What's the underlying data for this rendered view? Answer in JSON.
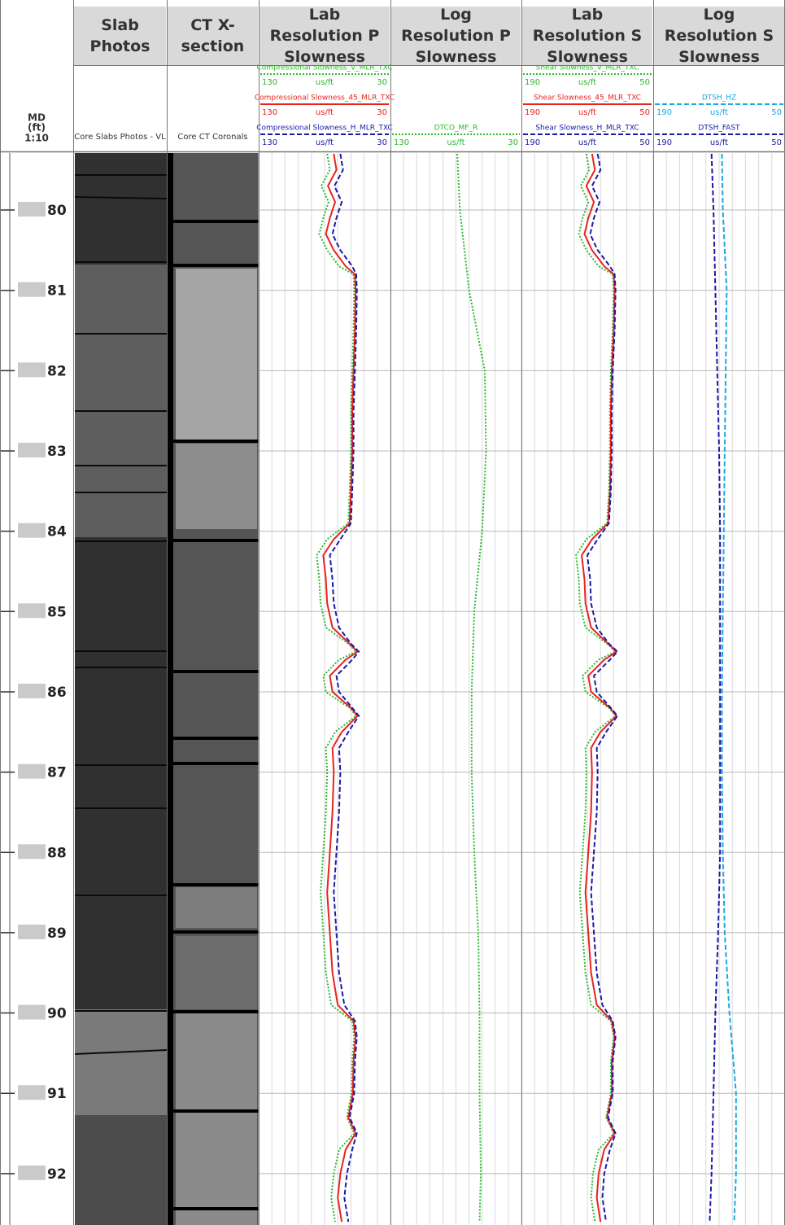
{
  "header": {
    "md": [
      "MD",
      "(ft)",
      "1:10"
    ]
  },
  "chart_data": {
    "type": "well-log",
    "ylim": [
      79.29,
      92.64
    ],
    "yticks": [
      80,
      81,
      82,
      83,
      84,
      85,
      86,
      87,
      88,
      89,
      90,
      91,
      92
    ],
    "tracks": [
      {
        "title": "Slab Photos",
        "subtitle": "Core Slabs Photos - VL"
      },
      {
        "title": "CT X-section",
        "subtitle": "Core CT Coronals"
      },
      {
        "title": "Lab Resolution P Slowness",
        "xlim": [
          130,
          30
        ],
        "xticks": [
          130,
          120,
          110,
          100,
          90,
          80,
          70,
          60,
          50,
          40,
          30
        ],
        "depth": [
          79.3,
          79.5,
          79.7,
          79.9,
          80.1,
          80.3,
          80.5,
          80.7,
          80.8,
          81.0,
          81.5,
          82,
          82.5,
          83,
          83.5,
          83.9,
          84.1,
          84.3,
          84.6,
          84.9,
          85.2,
          85.4,
          85.5,
          85.6,
          85.8,
          86.0,
          86.2,
          86.3,
          86.5,
          86.7,
          87.0,
          87.5,
          88.0,
          88.5,
          89.0,
          89.5,
          89.9,
          90.1,
          90.3,
          90.6,
          91.0,
          91.3,
          91.5,
          91.7,
          92.0,
          92.3,
          92.6
        ],
        "series": [
          {
            "name": "Compressional Slowness_V_MLR_TXC",
            "unit": "us/ft",
            "color": "#2db82d",
            "dash": "2,2",
            "values": [
              78,
              76,
              82.5,
              77,
              81,
              84,
              78,
              69,
              58,
              57.5,
              58,
              59,
              60,
              60,
              61,
              62,
              78,
              86,
              84,
              83,
              79,
              62,
              56,
              69,
              81,
              79,
              61,
              56,
              72,
              79,
              78,
              79,
              81,
              83,
              81,
              79,
              75,
              59,
              57.5,
              59,
              59.5,
              63,
              57.5,
              69,
              73,
              75,
              72
            ]
          },
          {
            "name": "Compressional Slowness_45_MLR_TXC",
            "unit": "us/ft",
            "color": "#e8231e",
            "dash": "none",
            "values": [
              73,
              71,
              77.5,
              72,
              76,
              79,
              73,
              64,
              57,
              56.5,
              57,
              58,
              59,
              59,
              60,
              61,
              73,
              81,
              79,
              78,
              74,
              61,
              55,
              64,
              76,
              74,
              60,
              55,
              67,
              74,
              73,
              74,
              76,
              78,
              76,
              74,
              70,
              58,
              56.5,
              58,
              58.5,
              62,
              56.5,
              64,
              68,
              70,
              67
            ]
          },
          {
            "name": "Compressional Slowness_H_MLR_TXC",
            "unit": "us/ft",
            "color": "#1a1aa8",
            "dash": "6,3",
            "values": [
              68,
              66,
              72.5,
              67,
              71,
              74,
              68,
              59,
              56,
              55.5,
              56,
              57,
              58,
              58,
              59,
              60,
              68,
              76,
              74,
              73,
              69,
              60,
              54,
              59,
              71,
              69,
              59,
              54,
              62,
              69,
              68,
              69,
              71,
              73,
              71,
              69,
              65,
              57,
              55.5,
              57,
              57.5,
              61,
              55.5,
              59,
              63,
              65,
              62
            ]
          }
        ]
      },
      {
        "title": "Log Resolution P Slowness",
        "xlim": [
          130,
          30
        ],
        "xticks": [
          130,
          120,
          110,
          100,
          90,
          80,
          70,
          60,
          50,
          40,
          30
        ],
        "depth": [
          79.3,
          80,
          81,
          82,
          83,
          84,
          85,
          86,
          87,
          88,
          89,
          90,
          91,
          92,
          92.6
        ],
        "series": [
          {
            "name": "DTCO_MF_R",
            "unit": "us/ft",
            "color": "#2db82d",
            "dash": "2,2",
            "values": [
              79,
              77,
              70,
              58,
              57,
              60,
              66,
              68,
              68,
              66,
              63,
              62,
              62,
              61,
              62
            ]
          }
        ]
      },
      {
        "title": "Lab Resolution S Slowness",
        "xlim": [
          190,
          50
        ],
        "xticks": [
          190,
          176,
          162,
          148,
          134,
          120,
          106,
          92,
          78,
          64,
          50
        ],
        "depth": [
          79.3,
          79.5,
          79.7,
          79.9,
          80.1,
          80.3,
          80.5,
          80.7,
          80.8,
          81.0,
          81.5,
          82,
          82.5,
          83,
          83.5,
          83.9,
          84.1,
          84.3,
          84.6,
          84.9,
          85.2,
          85.4,
          85.5,
          85.6,
          85.8,
          86.0,
          86.2,
          86.3,
          86.5,
          86.7,
          87.0,
          87.5,
          88.0,
          88.5,
          89.0,
          89.5,
          89.9,
          90.1,
          90.3,
          90.6,
          91.0,
          91.3,
          91.5,
          91.7,
          92.0,
          92.3,
          92.6
        ],
        "series": [
          {
            "name": "Shear Slowness_V_MLR_TXC",
            "unit": "us/ft",
            "color": "#2db82d",
            "dash": "2,2",
            "values": [
              121,
              118,
              127,
              119,
              125,
              129,
              121,
              108,
              93,
              92,
              93,
              95,
              96,
              96,
              97,
              99,
              121,
              132,
              129,
              128,
              122,
              99,
              90,
              108,
              125,
              122,
              97,
              90,
              112,
              122,
              121,
              122,
              125,
              128,
              125,
              122,
              116,
              95,
              92,
              95,
              95,
              100,
              92,
              108,
              114,
              116,
              112
            ]
          },
          {
            "name": "Shear Slowness_45_MLR_TXC",
            "unit": "us/ft",
            "color": "#e8231e",
            "dash": "none",
            "values": [
              115,
              112,
              121,
              113,
              119,
              123,
              115,
              102,
              92,
              91,
              92,
              94,
              95,
              95,
              96,
              98,
              115,
              126,
              123,
              122,
              116,
              98,
              89,
              102,
              119,
              116,
              96,
              89,
              106,
              116,
              115,
              116,
              119,
              122,
              119,
              116,
              110,
              94,
              91,
              94,
              94,
              99,
              91,
              102,
              108,
              110,
              106
            ]
          },
          {
            "name": "Shear Slowness_H_MLR_TXC",
            "unit": "us/ft",
            "color": "#1a1aa8",
            "dash": "6,3",
            "values": [
              109,
              106,
              115,
              107,
              113,
              117,
              109,
              96,
              91,
              90,
              91,
              93,
              94,
              94,
              95,
              97,
              109,
              120,
              117,
              116,
              110,
              97,
              88,
              96,
              113,
              110,
              95,
              88,
              100,
              110,
              109,
              110,
              113,
              116,
              113,
              110,
              104,
              93,
              90,
              93,
              93,
              98,
              90,
              96,
              102,
              104,
              100
            ]
          }
        ]
      },
      {
        "title": "Log Resolution S Slowness",
        "xlim": [
          190,
          50
        ],
        "xticks": [
          190,
          176,
          162,
          148,
          134,
          120,
          106,
          92,
          78,
          64,
          50
        ],
        "depth": [
          79.3,
          80,
          81,
          82,
          83,
          84,
          85,
          86,
          87,
          88,
          89,
          90,
          91,
          92,
          92.6
        ],
        "series": [
          {
            "name": "DTSH_HZ",
            "unit": "us/ft",
            "color": "#1aa8e0",
            "dash": "6,3",
            "values": [
              117,
              116,
              112,
              113,
              114,
              115,
              116,
              117,
              117,
              116,
              114,
              109,
              102,
              102,
              104
            ]
          },
          {
            "name": "DTSH_FAST",
            "unit": "us/ft",
            "color": "#1a1aa8",
            "dash": "6,3",
            "values": [
              128,
              126,
              124,
              122,
              120,
              119,
              119,
              119,
              119,
              119,
              121,
              124,
              126,
              128,
              130
            ]
          }
        ]
      }
    ]
  }
}
